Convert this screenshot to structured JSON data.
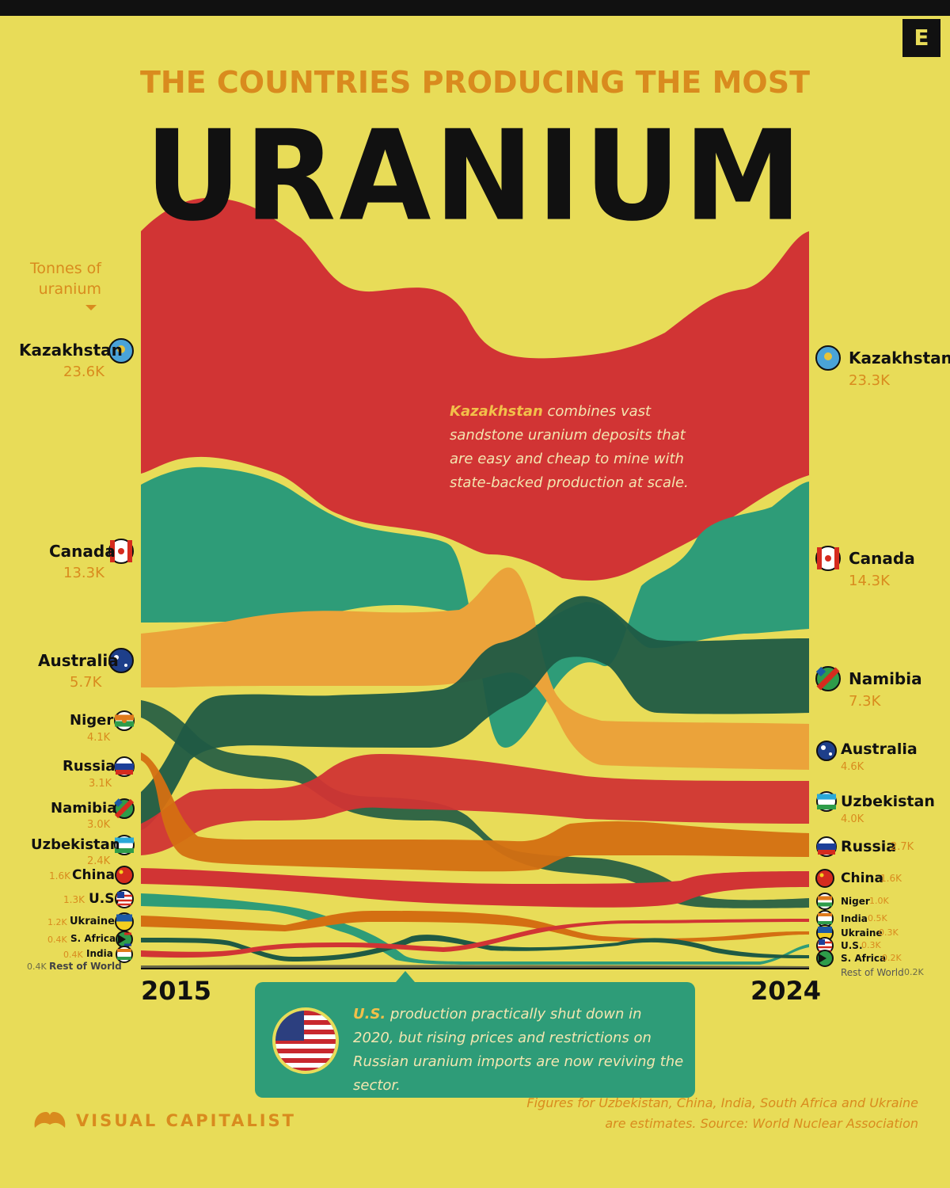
{
  "header": {
    "subtitle": "THE COUNTRIES PRODUCING THE MOST",
    "title": "URANIUM",
    "unit_label_1": "Tonnes of",
    "unit_label_2": "uranium",
    "publisher_badge": "E"
  },
  "annotations": {
    "kazakhstan_strong": "Kazakhstan",
    "kazakhstan_rest": " combines vast sandstone uranium deposits that are easy and cheap to mine with state-backed production at scale.",
    "us_strong": "U.S.",
    "us_rest": " production practically shut down in 2020, but rising prices and restrictions on Russian uranium imports are now reviving the sector."
  },
  "footer": {
    "brand": "VISUAL CAPITALIST",
    "note": "Figures for Uzbekistan, China, India, South Africa and Ukraine are estimates. Source: World Nuclear Association"
  },
  "colors": {
    "background": "#e8dc58",
    "kazakhstan": "#d13434",
    "canada": "#2e9c78",
    "australia": "#eba33a",
    "niger": "#1f5a44",
    "russia": "#d46f12",
    "namibia": "#1f5a44",
    "uzbekistan": "#d13434",
    "china": "#d13434",
    "us": "#2e9c78",
    "ukraine": "#d46f12",
    "south_africa": "#1f5a44",
    "india": "#d13434",
    "rest_of_world": "#555544"
  },
  "chart_data": {
    "type": "area",
    "title": "THE COUNTRIES PRODUCING THE MOST URANIUM",
    "ylabel": "Tonnes of uranium",
    "x_start": "2015",
    "x_end": "2024",
    "start_labels": [
      {
        "name": "Kazakhstan",
        "value": "23.6K",
        "icon": "kazakhstan-flag-icon"
      },
      {
        "name": "Canada",
        "value": "13.3K",
        "icon": "canada-flag-icon"
      },
      {
        "name": "Australia",
        "value": "5.7K",
        "icon": "australia-flag-icon"
      },
      {
        "name": "Niger",
        "value": "4.1K",
        "icon": "niger-flag-icon"
      },
      {
        "name": "Russia",
        "value": "3.1K",
        "icon": "russia-flag-icon"
      },
      {
        "name": "Namibia",
        "value": "3.0K",
        "icon": "namibia-flag-icon"
      },
      {
        "name": "Uzbekistan",
        "value": "2.4K",
        "icon": "uzbekistan-flag-icon"
      },
      {
        "name": "China",
        "value": "1.6K",
        "icon": "china-flag-icon"
      },
      {
        "name": "U.S.",
        "value": "1.3K",
        "icon": "us-flag-icon"
      },
      {
        "name": "Ukraine",
        "value": "1.2K",
        "icon": "ukraine-flag-icon"
      },
      {
        "name": "S. Africa",
        "value": "0.4K",
        "icon": "south-africa-flag-icon"
      },
      {
        "name": "India",
        "value": "0.4K",
        "icon": "india-flag-icon"
      },
      {
        "name": "Rest of World",
        "value": "0.4K",
        "icon": ""
      }
    ],
    "end_labels": [
      {
        "name": "Kazakhstan",
        "value": "23.3K",
        "icon": "kazakhstan-flag-icon"
      },
      {
        "name": "Canada",
        "value": "14.3K",
        "icon": "canada-flag-icon"
      },
      {
        "name": "Namibia",
        "value": "7.3K",
        "icon": "namibia-flag-icon"
      },
      {
        "name": "Australia",
        "value": "4.6K",
        "icon": "australia-flag-icon"
      },
      {
        "name": "Uzbekistan",
        "value": "4.0K",
        "icon": "uzbekistan-flag-icon"
      },
      {
        "name": "Russia",
        "value": "2.7K",
        "icon": "russia-flag-icon"
      },
      {
        "name": "China",
        "value": "1.6K",
        "icon": "china-flag-icon"
      },
      {
        "name": "Niger",
        "value": "1.0K",
        "icon": "niger-flag-icon"
      },
      {
        "name": "India",
        "value": "0.5K",
        "icon": "india-flag-icon"
      },
      {
        "name": "Ukraine",
        "value": "0.3K",
        "icon": "ukraine-flag-icon"
      },
      {
        "name": "U.S.",
        "value": "0.3K",
        "icon": "us-flag-icon"
      },
      {
        "name": "S. Africa",
        "value": "0.2K",
        "icon": "south-africa-flag-icon"
      },
      {
        "name": "Rest of World",
        "value": "0.2K",
        "icon": ""
      }
    ]
  }
}
